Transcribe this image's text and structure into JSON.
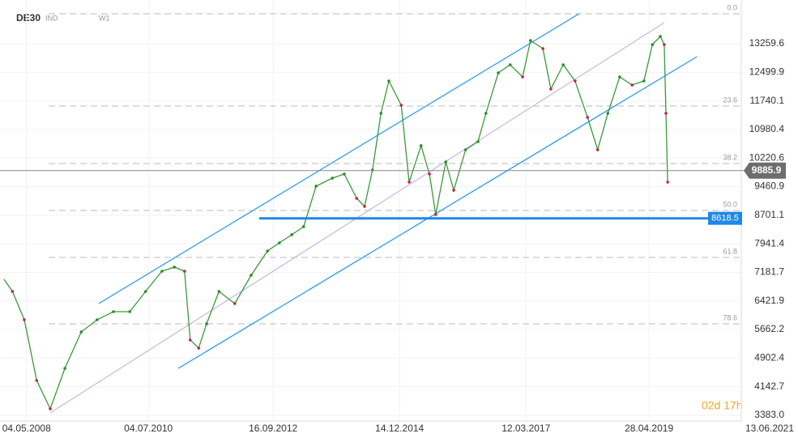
{
  "symbol": "DE30",
  "market": "IND",
  "interval": "W1",
  "countdown": "02d 17h",
  "chart_data": {
    "type": "line",
    "xlim": [
      2007.87,
      2021.45
    ],
    "xticks": [
      {
        "value": 2008.34,
        "label": "04.05.2008"
      },
      {
        "value": 2010.5,
        "label": "04.07.2010"
      },
      {
        "value": 2012.71,
        "label": "16.09.2012"
      },
      {
        "value": 2014.95,
        "label": "14.12.2014"
      },
      {
        "value": 2017.19,
        "label": "12.03.2017"
      },
      {
        "value": 2019.37,
        "label": "28.04.2019"
      },
      {
        "value": 2021.58,
        "label": "13.06.2021"
      }
    ],
    "ylim": [
      3232,
      14422
    ],
    "yticks": [
      {
        "value": 3383,
        "label": "3383.0"
      },
      4142.7,
      4902.4,
      5662.2,
      6421.9,
      7181.7,
      7941.4,
      8701.1,
      9460.9,
      10220.6,
      10980.4,
      11740.1,
      12499.9,
      13259.6
    ],
    "grid": true,
    "series": [
      {
        "name": "DE30",
        "color": "#3a9a3a",
        "x": [
          2007.94,
          2008.09,
          2008.3,
          2008.52,
          2008.76,
          2009.02,
          2009.31,
          2009.59,
          2009.88,
          2010.17,
          2010.45,
          2010.74,
          2010.96,
          2011.14,
          2011.24,
          2011.39,
          2011.53,
          2011.75,
          2012.03,
          2012.32,
          2012.61,
          2012.82,
          2013.04,
          2013.25,
          2013.47,
          2013.76,
          2013.97,
          2014.19,
          2014.33,
          2014.47,
          2014.62,
          2014.76,
          2014.98,
          2015.12,
          2015.33,
          2015.48,
          2015.59,
          2015.77,
          2015.91,
          2016.12,
          2016.34,
          2016.48,
          2016.7,
          2016.91,
          2017.13,
          2017.27,
          2017.49,
          2017.63,
          2017.85,
          2018.06,
          2018.28,
          2018.46,
          2018.64,
          2018.85,
          2019.07,
          2019.28,
          2019.43,
          2019.57,
          2019.64,
          2019.67,
          2019.7
        ],
        "values": [
          7000,
          6675,
          5922,
          4308,
          3555,
          4631,
          5600,
          5922,
          6137,
          6137,
          6675,
          7213,
          7321,
          7213,
          5384,
          5169,
          5815,
          6675,
          6353,
          7106,
          7751,
          7966,
          8182,
          8397,
          9473,
          9688,
          9796,
          9150,
          8935,
          9903,
          11409,
          12270,
          11624,
          9580,
          10549,
          9796,
          8720,
          10119,
          9365,
          10441,
          10656,
          11409,
          12485,
          12700,
          12377,
          13346,
          13131,
          12055,
          12700,
          12270,
          11302,
          10441,
          11409,
          12377,
          12162,
          12270,
          13238,
          13453,
          13238,
          11409,
          9580
        ]
      }
    ],
    "last_price": 9885.9,
    "support_level": 8618.5,
    "fibonacci": [
      {
        "label": "0.0",
        "price": 14056
      },
      {
        "label": "23.6",
        "price": 11603
      },
      {
        "label": "38.2",
        "price": 10075
      },
      {
        "label": "50.0",
        "price": 8827
      },
      {
        "label": "61.8",
        "price": 7579
      },
      {
        "label": "78.6",
        "price": 5815
      }
    ],
    "trendlines": [
      {
        "name": "upper",
        "x": [
          2009.62,
          2018.13
        ],
        "y": [
          6353,
          14056
        ],
        "color": "#2196f3"
      },
      {
        "name": "lower",
        "x": [
          2011.03,
          2020.22
        ],
        "y": [
          4631,
          12916
        ],
        "color": "#2196f3"
      },
      {
        "name": "middle",
        "x": [
          2008.76,
          2019.64
        ],
        "y": [
          3447,
          13820
        ],
        "color": "#c9b6e4"
      }
    ]
  }
}
